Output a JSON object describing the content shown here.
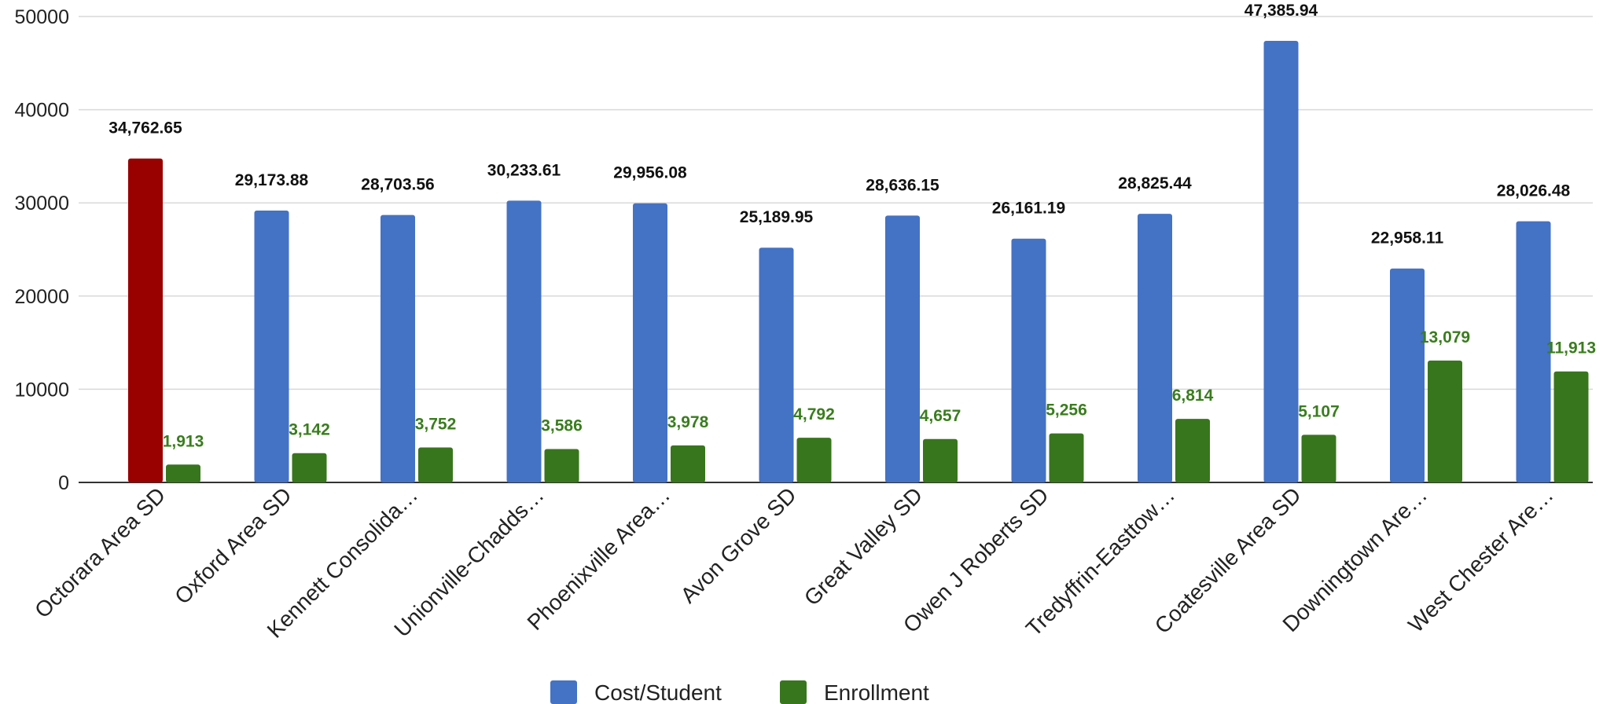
{
  "chart_data": {
    "type": "bar",
    "title": "",
    "xlabel": "",
    "ylabel": "",
    "ylim": [
      0,
      50000
    ],
    "yticks": [
      "0",
      "10000",
      "20000",
      "30000",
      "40000",
      "50000"
    ],
    "grid": true,
    "legend_position": "bottom",
    "categories": [
      "Octorara Area SD",
      "Oxford Area SD",
      "Kennett Consolida…",
      "Unionville-Chadds…",
      "Phoenixville Area…",
      "Avon Grove SD",
      "Great Valley SD",
      "Owen J Roberts SD",
      "Tredyffrin-Easttow…",
      "Coatesville Area SD",
      "Downingtown Are…",
      "West Chester Are…"
    ],
    "series": [
      {
        "name": "Cost/Student",
        "color": "#4472c4",
        "highlight": {
          "index": 0,
          "color": "#990000"
        },
        "values": [
          34762.65,
          29173.88,
          28703.56,
          30233.61,
          29956.08,
          25189.95,
          28636.15,
          26161.19,
          28825.44,
          47385.94,
          22958.11,
          28026.48
        ],
        "labels": [
          "34,762.65",
          "29,173.88",
          "28,703.56",
          "30,233.61",
          "29,956.08",
          "25,189.95",
          "28,636.15",
          "26,161.19",
          "28,825.44",
          "47,385.94",
          "22,958.11",
          "28,026.48"
        ]
      },
      {
        "name": "Enrollment",
        "color": "#38761d",
        "label_color": "#3a7d1e",
        "values": [
          1913,
          3142,
          3752,
          3586,
          3978,
          4792,
          4657,
          5256,
          6814,
          5107,
          13079,
          11913
        ],
        "labels": [
          "1,913",
          "3,142",
          "3,752",
          "3,586",
          "3,978",
          "4,792",
          "4,657",
          "5,256",
          "6,814",
          "5,107",
          "13,079",
          "11,913"
        ]
      }
    ]
  }
}
